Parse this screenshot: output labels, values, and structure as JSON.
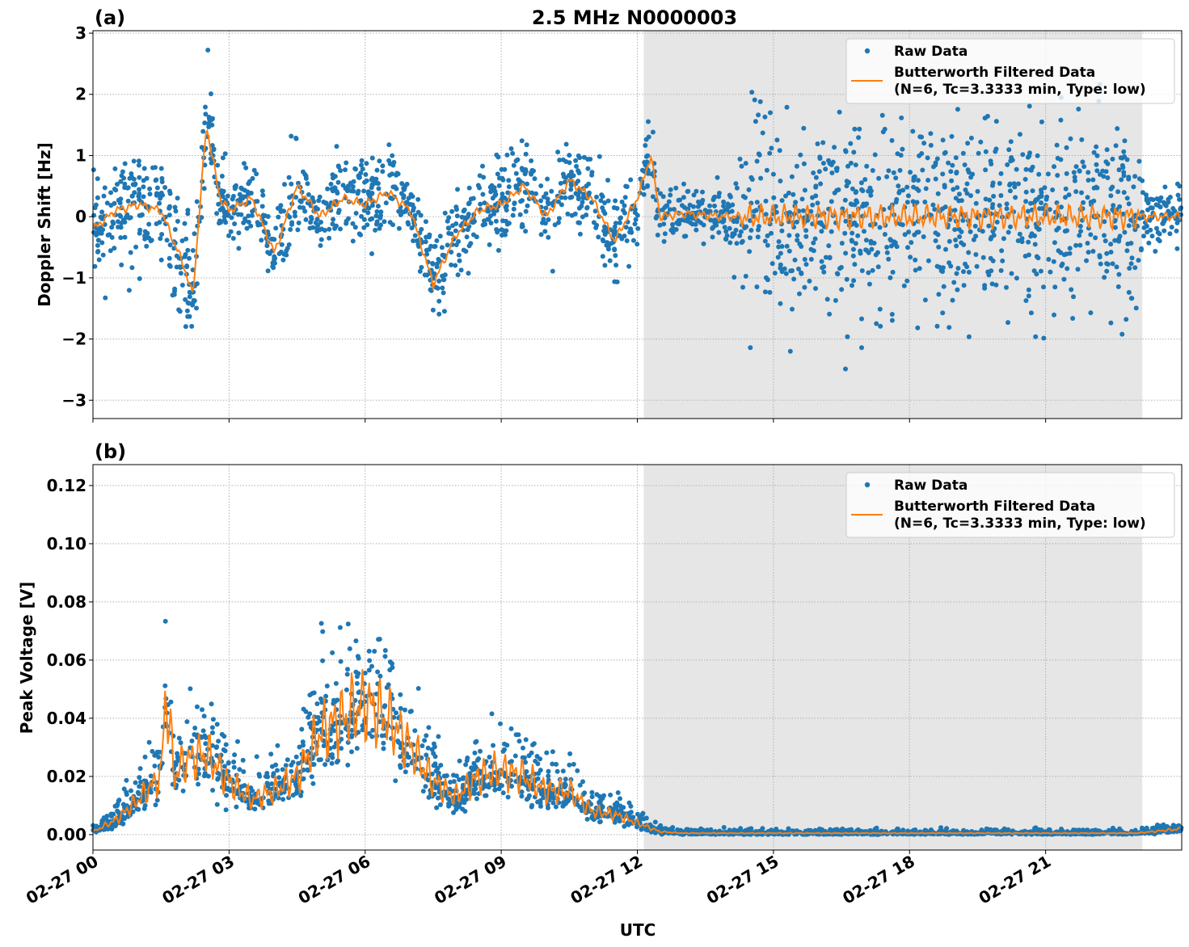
{
  "chart_data": [
    {
      "type": "scatter",
      "panel_label": "(a)",
      "title": "2.5 MHz N0000003",
      "xlabel": "",
      "ylabel": "Doppler Shift [Hz]",
      "xlim_hours": [
        0,
        24
      ],
      "ylim": [
        -3.3,
        3.04
      ],
      "yticks": [
        3,
        2,
        1,
        0,
        -1,
        -2,
        -3
      ],
      "ytick_labels": [
        "3",
        "2",
        "1",
        "0",
        "−1",
        "−2",
        "−3"
      ],
      "shaded_region_hours": [
        12.14,
        23.13
      ],
      "grid": true,
      "legend": {
        "placement": "top-right",
        "entries": [
          "Raw Data",
          "Butterworth Filtered Data",
          "(N=6, Tc=3.3333 min, Type: low)"
        ]
      },
      "colors": {
        "raw": "#1f77b4",
        "filtered": "#ff7f0e",
        "shade": "#e6e6e6"
      },
      "filtered_series": {
        "x_hours": [
          0,
          0.5,
          1,
          1.5,
          2,
          2.2,
          2.5,
          2.8,
          3,
          3.5,
          4,
          4.5,
          5,
          5.5,
          6,
          6.5,
          7,
          7.5,
          8,
          8.5,
          9,
          9.5,
          10,
          10.5,
          11,
          11.5,
          12,
          12.3,
          12.5,
          13,
          14,
          15,
          16,
          17,
          18,
          19,
          20,
          21,
          22,
          23,
          24
        ],
        "y": [
          -0.2,
          0.1,
          0.2,
          0.1,
          -0.8,
          -1.3,
          1.5,
          0.3,
          0.1,
          0.3,
          -0.6,
          0.5,
          0.0,
          0.3,
          0.2,
          0.4,
          0.1,
          -1.1,
          -0.3,
          0.1,
          0.2,
          0.5,
          0.0,
          0.6,
          0.3,
          -0.4,
          0.3,
          1.0,
          0.0,
          0.05,
          0.0,
          0.0,
          0.0,
          0.0,
          0.0,
          0.0,
          0.0,
          0.0,
          0.0,
          0.0,
          0.0
        ]
      },
      "raw_spread": {
        "x_hours": [
          0,
          2,
          2.5,
          3,
          12,
          12.5,
          14,
          14.5,
          23,
          23.3,
          24
        ],
        "sd": [
          0.35,
          0.5,
          0.45,
          0.35,
          0.35,
          0.2,
          0.2,
          0.75,
          0.75,
          0.25,
          0.25
        ]
      }
    },
    {
      "type": "scatter",
      "panel_label": "(b)",
      "xlabel": "UTC",
      "ylabel": "Peak Voltage [V]",
      "xlim_hours": [
        0,
        24
      ],
      "ylim": [
        -0.0053,
        0.1272
      ],
      "yticks": [
        0,
        0.02,
        0.04,
        0.06,
        0.08,
        0.1,
        0.12
      ],
      "ytick_labels": [
        "0.00",
        "0.02",
        "0.04",
        "0.06",
        "0.08",
        "0.10",
        "0.12"
      ],
      "xticks_hours": [
        0,
        3,
        6,
        9,
        12,
        15,
        18,
        21
      ],
      "xtick_labels": [
        "02-27 00",
        "02-27 03",
        "02-27 06",
        "02-27 09",
        "02-27 12",
        "02-27 15",
        "02-27 18",
        "02-27 21"
      ],
      "shaded_region_hours": [
        12.14,
        23.13
      ],
      "grid": true,
      "legend": {
        "placement": "top-right",
        "entries": [
          "Raw Data",
          "Butterworth Filtered Data",
          "(N=6, Tc=3.3333 min, Type: low)"
        ]
      },
      "filtered_series": {
        "x_hours": [
          0,
          0.5,
          1,
          1.5,
          1.6,
          1.8,
          2,
          2.5,
          3,
          3.5,
          4,
          4.5,
          5,
          5.5,
          6,
          6.5,
          7,
          7.5,
          8,
          8.5,
          9,
          9.5,
          10,
          10.5,
          11,
          11.5,
          12,
          12.5,
          13,
          14,
          23,
          24
        ],
        "y": [
          0.001,
          0.005,
          0.012,
          0.02,
          0.05,
          0.02,
          0.025,
          0.028,
          0.018,
          0.012,
          0.015,
          0.02,
          0.035,
          0.04,
          0.045,
          0.04,
          0.03,
          0.018,
          0.013,
          0.02,
          0.022,
          0.02,
          0.015,
          0.015,
          0.008,
          0.007,
          0.004,
          0.001,
          0.0005,
          0.0005,
          0.0005,
          0.002
        ]
      }
    }
  ]
}
